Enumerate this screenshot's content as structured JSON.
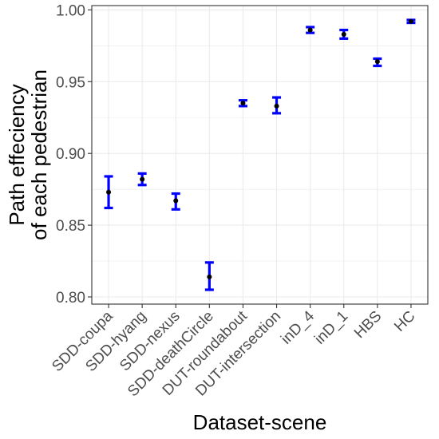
{
  "chart_data": {
    "type": "errorbar",
    "title": "",
    "xlabel": "Dataset-scene",
    "ylabel_lines": [
      "Path effeciency",
      "of each pedestrian"
    ],
    "ylim": [
      0.795,
      1.003
    ],
    "yticks": [
      0.8,
      0.85,
      0.9,
      0.95,
      1.0
    ],
    "ytick_labels": [
      "0.80",
      "0.85",
      "0.90",
      "0.95",
      "1.00"
    ],
    "grid": true,
    "categories": [
      "SDD-coupa",
      "SDD-hyang",
      "SDD-nexus",
      "SDD-deathCircle",
      "DUT-roundabout",
      "DUT-intersection",
      "inD_4",
      "inD_1",
      "HBS",
      "HC"
    ],
    "mean": [
      0.873,
      0.882,
      0.867,
      0.814,
      0.935,
      0.933,
      0.986,
      0.983,
      0.964,
      0.992
    ],
    "lower": [
      0.862,
      0.878,
      0.861,
      0.805,
      0.933,
      0.928,
      0.984,
      0.98,
      0.961,
      0.991
    ],
    "upper": [
      0.884,
      0.886,
      0.872,
      0.824,
      0.937,
      0.939,
      0.988,
      0.986,
      0.966,
      0.993
    ],
    "colors": {
      "errorbar": "#0000ff",
      "point": "#000000",
      "grid": "#ebebeb",
      "axis": "#333333"
    }
  }
}
